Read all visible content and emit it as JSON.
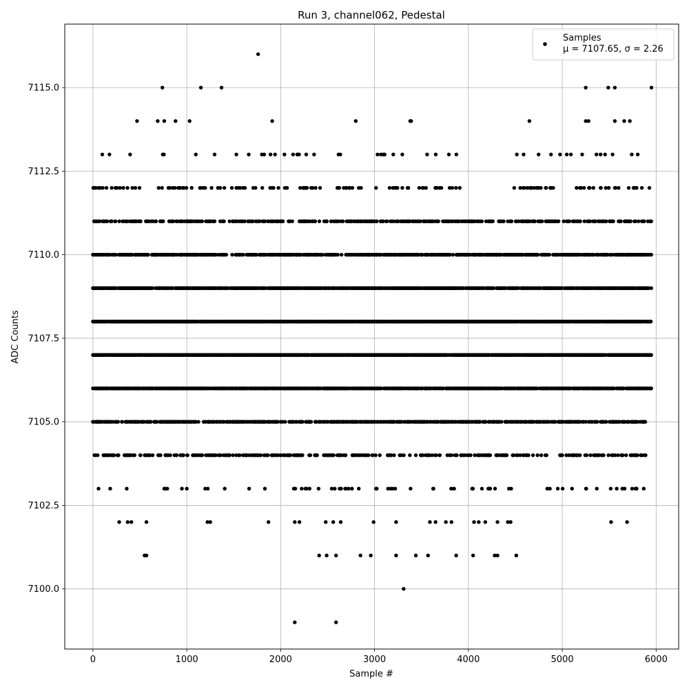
{
  "chart_data": {
    "type": "scatter",
    "title": "Run 3, channel062, Pedestal",
    "xlabel": "Sample #",
    "ylabel": "ADC Counts",
    "xlim": [
      -300,
      6240
    ],
    "ylim": [
      7098.2,
      7116.9
    ],
    "xticks": [
      0,
      1000,
      2000,
      3000,
      4000,
      5000,
      6000
    ],
    "xtick_labels": [
      "0",
      "1000",
      "2000",
      "3000",
      "4000",
      "5000",
      "6000"
    ],
    "yticks": [
      7100.0,
      7102.5,
      7105.0,
      7107.5,
      7110.0,
      7112.5,
      7115.0
    ],
    "ytick_labels": [
      "7100.0",
      "7102.5",
      "7105.0",
      "7107.5",
      "7110.0",
      "7112.5",
      "7115.0"
    ],
    "grid": true,
    "legend_position": "top-right",
    "marker_color": "#000000",
    "n_samples": 6000,
    "series": [
      {
        "name": "Samples",
        "stats_label": "μ = 7107.65, σ = 2.26",
        "points": [
          [
            1760,
            7116
          ],
          [
            740,
            7115
          ],
          [
            1150,
            7115
          ],
          [
            1370,
            7115
          ],
          [
            5250,
            7115
          ],
          [
            5490,
            7115
          ],
          [
            5560,
            7115
          ],
          [
            5950,
            7115
          ],
          [
            470,
            7114
          ],
          [
            690,
            7114
          ],
          [
            760,
            7114
          ],
          [
            880,
            7114
          ],
          [
            1030,
            7114
          ],
          [
            1910,
            7114
          ],
          [
            2800,
            7114
          ],
          [
            3380,
            7114
          ],
          [
            3390,
            7114
          ],
          [
            4650,
            7114
          ],
          [
            5250,
            7114
          ],
          [
            5280,
            7114
          ],
          [
            5560,
            7114
          ],
          [
            5660,
            7114
          ],
          [
            5720,
            7114
          ],
          [
            0,
            7110
          ],
          [
            10,
            7109
          ],
          [
            20,
            7107
          ],
          [
            30,
            7112
          ],
          [
            40,
            7111
          ],
          [
            50,
            7104
          ],
          [
            60,
            7103
          ],
          [
            100,
            7113
          ],
          [
            150,
            7105
          ],
          [
            280,
            7102
          ],
          [
            370,
            7102
          ],
          [
            410,
            7102
          ],
          [
            570,
            7102
          ],
          [
            1220,
            7102
          ],
          [
            1250,
            7102
          ],
          [
            1870,
            7102
          ],
          [
            2150,
            7102
          ],
          [
            2200,
            7102
          ],
          [
            2480,
            7102
          ],
          [
            2560,
            7102
          ],
          [
            2640,
            7102
          ],
          [
            2990,
            7102
          ],
          [
            3230,
            7102
          ],
          [
            3590,
            7102
          ],
          [
            3650,
            7102
          ],
          [
            3760,
            7102
          ],
          [
            3820,
            7102
          ],
          [
            4060,
            7102
          ],
          [
            4110,
            7102
          ],
          [
            4180,
            7102
          ],
          [
            4310,
            7102
          ],
          [
            4420,
            7102
          ],
          [
            4450,
            7102
          ],
          [
            5520,
            7102
          ],
          [
            5690,
            7102
          ],
          [
            550,
            7101
          ],
          [
            570,
            7101
          ],
          [
            2410,
            7101
          ],
          [
            2490,
            7101
          ],
          [
            2590,
            7101
          ],
          [
            2850,
            7101
          ],
          [
            2960,
            7101
          ],
          [
            3230,
            7101
          ],
          [
            3440,
            7101
          ],
          [
            3570,
            7101
          ],
          [
            3870,
            7101
          ],
          [
            4050,
            7101
          ],
          [
            4280,
            7101
          ],
          [
            4310,
            7101
          ],
          [
            4510,
            7101
          ],
          [
            3310,
            7100
          ],
          [
            2150,
            7099
          ],
          [
            2590,
            7099
          ]
        ]
      }
    ],
    "dense_rows": [
      {
        "value": 7113,
        "density": 0.03,
        "ranges": [
          [
            0,
            3950
          ],
          [
            4380,
            5950
          ]
        ]
      },
      {
        "value": 7112,
        "density": 0.1,
        "ranges": [
          [
            0,
            3950
          ],
          [
            4380,
            5950
          ]
        ]
      },
      {
        "value": 7111,
        "density": 0.28,
        "ranges": [
          [
            0,
            5950
          ]
        ]
      },
      {
        "value": 7110,
        "density": 0.42,
        "ranges": [
          [
            0,
            5950
          ]
        ]
      },
      {
        "value": 7109,
        "density": 0.6,
        "ranges": [
          [
            0,
            5950
          ]
        ]
      },
      {
        "value": 7108,
        "density": 0.75,
        "ranges": [
          [
            0,
            5950
          ]
        ]
      },
      {
        "value": 7107,
        "density": 0.78,
        "ranges": [
          [
            0,
            5950
          ]
        ]
      },
      {
        "value": 7106,
        "density": 0.55,
        "ranges": [
          [
            0,
            5950
          ]
        ]
      },
      {
        "value": 7105,
        "density": 0.38,
        "ranges": [
          [
            0,
            5890
          ]
        ]
      },
      {
        "value": 7104,
        "density": 0.2,
        "ranges": [
          [
            0,
            5890
          ]
        ]
      },
      {
        "value": 7103,
        "density": 0.06,
        "ranges": [
          [
            60,
            5890
          ]
        ]
      }
    ]
  }
}
